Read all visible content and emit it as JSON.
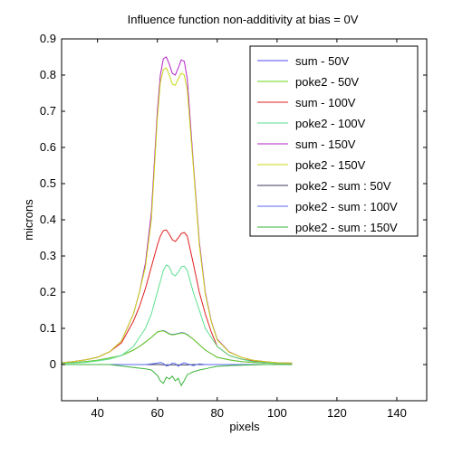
{
  "chart_data": {
    "type": "line",
    "title": "Influence function non-additivity at bias = 0V",
    "xlabel": "pixels",
    "ylabel": "microns",
    "xlim": [
      28,
      150
    ],
    "ylim": [
      -0.1,
      0.9
    ],
    "xticks": [
      40,
      60,
      80,
      100,
      120,
      140
    ],
    "yticks": [
      0,
      0.1,
      0.2,
      0.3,
      0.4,
      0.5,
      0.6,
      0.7,
      0.8,
      0.9
    ],
    "xtick_labels": [
      "40",
      "60",
      "80",
      "100",
      "120",
      "140"
    ],
    "ytick_labels": [
      "0",
      "0.1",
      "0.2",
      "0.3",
      "0.4",
      "0.5",
      "0.6",
      "0.7",
      "0.8",
      "0.9"
    ],
    "grid": false,
    "legend_position": "top-right",
    "x": [
      28,
      32,
      36,
      40,
      44,
      48,
      52,
      54,
      56,
      58,
      60,
      61,
      62,
      63,
      64,
      65,
      66,
      67,
      68,
      69,
      70,
      72,
      74,
      76,
      78,
      80,
      84,
      88,
      92,
      96,
      100,
      105
    ],
    "series": [
      {
        "name": "sum - 50V",
        "color": "#4c4cf0",
        "values": [
          0.003,
          0.005,
          0.008,
          0.012,
          0.018,
          0.025,
          0.04,
          0.05,
          0.062,
          0.075,
          0.09,
          0.092,
          0.094,
          0.09,
          0.085,
          0.083,
          0.084,
          0.086,
          0.088,
          0.087,
          0.083,
          0.07,
          0.055,
          0.04,
          0.03,
          0.02,
          0.013,
          0.008,
          0.006,
          0.004,
          0.003,
          0.003
        ]
      },
      {
        "name": "poke2 - 50V",
        "color": "#6bd31a",
        "values": [
          0.003,
          0.005,
          0.008,
          0.012,
          0.018,
          0.025,
          0.04,
          0.05,
          0.062,
          0.075,
          0.09,
          0.092,
          0.093,
          0.089,
          0.084,
          0.082,
          0.083,
          0.085,
          0.087,
          0.086,
          0.082,
          0.07,
          0.055,
          0.04,
          0.03,
          0.02,
          0.013,
          0.008,
          0.006,
          0.004,
          0.003,
          0.003
        ]
      },
      {
        "name": "sum - 100V",
        "color": "#e01f1f",
        "values": [
          0.005,
          0.008,
          0.013,
          0.02,
          0.035,
          0.06,
          0.12,
          0.16,
          0.21,
          0.27,
          0.33,
          0.355,
          0.37,
          0.372,
          0.36,
          0.345,
          0.34,
          0.35,
          0.362,
          0.365,
          0.355,
          0.28,
          0.2,
          0.14,
          0.09,
          0.05,
          0.025,
          0.015,
          0.01,
          0.006,
          0.004,
          0.003
        ]
      },
      {
        "name": "poke2 - 100V",
        "color": "#5be090",
        "values": [
          0.003,
          0.004,
          0.006,
          0.01,
          0.015,
          0.025,
          0.05,
          0.075,
          0.1,
          0.14,
          0.2,
          0.23,
          0.26,
          0.275,
          0.27,
          0.25,
          0.245,
          0.255,
          0.27,
          0.272,
          0.26,
          0.2,
          0.15,
          0.1,
          0.075,
          0.05,
          0.025,
          0.015,
          0.008,
          0.005,
          0.004,
          0.003
        ]
      },
      {
        "name": "sum - 150V",
        "color": "#b522c8",
        "values": [
          0.005,
          0.008,
          0.013,
          0.02,
          0.035,
          0.065,
          0.14,
          0.2,
          0.28,
          0.42,
          0.7,
          0.8,
          0.845,
          0.85,
          0.83,
          0.805,
          0.8,
          0.82,
          0.842,
          0.838,
          0.79,
          0.56,
          0.34,
          0.2,
          0.12,
          0.07,
          0.035,
          0.02,
          0.012,
          0.008,
          0.005,
          0.004
        ]
      },
      {
        "name": "poke2 - 150V",
        "color": "#c8d815",
        "values": [
          0.005,
          0.008,
          0.013,
          0.02,
          0.035,
          0.065,
          0.14,
          0.2,
          0.27,
          0.4,
          0.68,
          0.78,
          0.815,
          0.82,
          0.8,
          0.775,
          0.772,
          0.79,
          0.805,
          0.8,
          0.76,
          0.55,
          0.33,
          0.195,
          0.118,
          0.068,
          0.034,
          0.02,
          0.012,
          0.008,
          0.005,
          0.004
        ]
      },
      {
        "name": "poke2 - sum : 50V",
        "color": "#3a3a5a",
        "values": [
          0,
          0,
          0,
          0,
          0,
          0,
          0,
          0,
          0,
          0,
          0,
          0,
          -0.001,
          -0.001,
          -0.001,
          -0.001,
          -0.001,
          -0.001,
          -0.001,
          -0.001,
          -0.001,
          0,
          0,
          0,
          0,
          0,
          0,
          0,
          0,
          0,
          0,
          0
        ]
      },
      {
        "name": "poke2 - sum : 100V",
        "color": "#5a6af0",
        "values": [
          0,
          0,
          0,
          0,
          0,
          0,
          0,
          0,
          0,
          0.002,
          0.004,
          0.006,
          0.003,
          -0.004,
          -0.002,
          0.004,
          0.003,
          -0.005,
          0.002,
          0.005,
          0.002,
          -0.003,
          0.002,
          0,
          0,
          0,
          0,
          0,
          0,
          0,
          0,
          0
        ]
      },
      {
        "name": "poke2 - sum : 150V",
        "color": "#3cb53c",
        "values": [
          0,
          0,
          0,
          0,
          0,
          -0.004,
          -0.008,
          -0.01,
          -0.012,
          -0.015,
          -0.03,
          -0.045,
          -0.052,
          -0.035,
          -0.04,
          -0.032,
          -0.045,
          -0.038,
          -0.058,
          -0.044,
          -0.028,
          -0.02,
          -0.015,
          -0.012,
          -0.008,
          -0.005,
          -0.003,
          -0.002,
          -0.001,
          0,
          0,
          0
        ]
      }
    ]
  }
}
